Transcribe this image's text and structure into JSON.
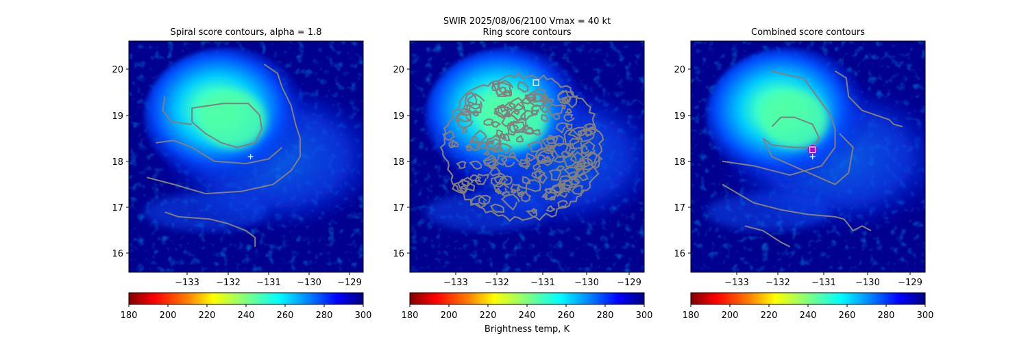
{
  "suptitle": "SWIR  2025/08/06/2100    Vmax = 40 kt",
  "colorbar_label": "Brightness temp, K",
  "colors": {
    "background_field": "#00008f",
    "contour": "#808080",
    "marker_plus": "#ffffff",
    "marker_square": "#ffffff",
    "marker_circle": "#b000c8",
    "colormap": [
      "#800000",
      "#ff0000",
      "#ff8000",
      "#ffff00",
      "#80ff80",
      "#00ffff",
      "#0080ff",
      "#0000ff",
      "#000080"
    ]
  },
  "chart_data": [
    {
      "type": "heatmap",
      "title": "Spiral score contours, alpha =  1.8",
      "xlim": [
        -134.0,
        -128.8
      ],
      "ylim": [
        15.6,
        20.6
      ],
      "xticks": [
        "−133",
        "−132",
        "−131",
        "−130",
        "−129"
      ],
      "yticks": [
        "16",
        "17",
        "18",
        "19",
        "20"
      ],
      "colorbar": {
        "min": 180,
        "max": 300,
        "ticks": [
          "180",
          "200",
          "220",
          "240",
          "260",
          "280",
          "300"
        ]
      },
      "markers": [
        {
          "kind": "plus",
          "lon": -131.3,
          "lat": 18.1
        }
      ],
      "contours": [
        [
          [
            -131.0,
            20.1
          ],
          [
            -130.7,
            19.9
          ],
          [
            -130.6,
            19.6
          ],
          [
            -130.4,
            19.2
          ],
          [
            -130.3,
            18.8
          ],
          [
            -130.2,
            18.5
          ],
          [
            -130.2,
            18.1
          ],
          [
            -130.4,
            17.8
          ],
          [
            -130.8,
            17.5
          ],
          [
            -131.5,
            17.35
          ],
          [
            -132.3,
            17.3
          ],
          [
            -133.0,
            17.5
          ],
          [
            -133.6,
            17.65
          ]
        ],
        [
          [
            -131.9,
            19.25
          ],
          [
            -131.35,
            19.25
          ],
          [
            -131.1,
            19.0
          ],
          [
            -131.05,
            18.7
          ],
          [
            -131.2,
            18.4
          ],
          [
            -131.6,
            18.3
          ],
          [
            -131.95,
            18.4
          ],
          [
            -132.3,
            18.6
          ],
          [
            -132.6,
            18.85
          ],
          [
            -132.6,
            19.15
          ],
          [
            -131.9,
            19.25
          ]
        ],
        [
          [
            -133.2,
            19.4
          ],
          [
            -133.25,
            19.1
          ],
          [
            -133.05,
            18.85
          ],
          [
            -132.6,
            18.8
          ]
        ],
        [
          [
            -133.4,
            18.4
          ],
          [
            -133.0,
            18.45
          ],
          [
            -132.6,
            18.3
          ],
          [
            -132.1,
            18.0
          ],
          [
            -131.4,
            17.95
          ],
          [
            -130.9,
            18.05
          ],
          [
            -130.6,
            18.3
          ]
        ],
        [
          [
            -133.2,
            16.9
          ],
          [
            -132.9,
            16.8
          ],
          [
            -132.2,
            16.75
          ],
          [
            -131.8,
            16.65
          ],
          [
            -131.4,
            16.5
          ],
          [
            -131.2,
            16.35
          ],
          [
            -131.2,
            16.15
          ]
        ]
      ]
    },
    {
      "type": "heatmap",
      "title": "Ring score contours",
      "xlim": [
        -134.0,
        -128.8
      ],
      "ylim": [
        15.6,
        20.6
      ],
      "xticks": [
        "−133",
        "−132",
        "−131",
        "−130",
        "−129"
      ],
      "yticks": [
        "16",
        "17",
        "18",
        "19",
        "20"
      ],
      "colorbar": {
        "min": 180,
        "max": 300,
        "ticks": [
          "180",
          "200",
          "220",
          "240",
          "260",
          "280",
          "300"
        ]
      },
      "markers": [
        {
          "kind": "square",
          "lon": -131.2,
          "lat": 19.7
        }
      ],
      "ring": {
        "center": [
          -131.5,
          18.3
        ],
        "radius": [
          1.75,
          1.55
        ]
      }
    },
    {
      "type": "heatmap",
      "title": "Combined score contours",
      "xlim": [
        -134.0,
        -128.8
      ],
      "ylim": [
        15.6,
        20.6
      ],
      "xticks": [
        "−133",
        "−132",
        "−131",
        "−130",
        "−129"
      ],
      "yticks": [
        "16",
        "17",
        "18",
        "19",
        "20"
      ],
      "colorbar": {
        "min": 180,
        "max": 300,
        "ticks": [
          "180",
          "200",
          "220",
          "240",
          "260",
          "280",
          "300"
        ]
      },
      "markers": [
        {
          "kind": "circle",
          "lon": -131.3,
          "lat": 18.25
        },
        {
          "kind": "square",
          "lon": -131.3,
          "lat": 18.25
        },
        {
          "kind": "plus",
          "lon": -131.3,
          "lat": 18.1
        }
      ],
      "contours": [
        [
          [
            -132.2,
            19.95
          ],
          [
            -131.8,
            19.85
          ],
          [
            -131.5,
            19.8
          ],
          [
            -131.2,
            19.4
          ],
          [
            -130.9,
            19.0
          ],
          [
            -130.8,
            18.7
          ],
          [
            -130.8,
            18.3
          ],
          [
            -131.1,
            17.9
          ],
          [
            -131.8,
            17.7
          ],
          [
            -132.6,
            17.9
          ],
          [
            -133.3,
            18.0
          ]
        ],
        [
          [
            -132.2,
            18.75
          ],
          [
            -132.0,
            18.95
          ],
          [
            -131.7,
            18.95
          ],
          [
            -131.3,
            18.8
          ],
          [
            -131.15,
            18.5
          ],
          [
            -131.3,
            18.3
          ],
          [
            -131.7,
            18.3
          ],
          [
            -132.2,
            18.35
          ],
          [
            -132.4,
            18.5
          ]
        ],
        [
          [
            -130.8,
            19.95
          ],
          [
            -130.55,
            19.8
          ],
          [
            -130.5,
            19.4
          ],
          [
            -130.2,
            19.1
          ],
          [
            -129.6,
            18.9
          ],
          [
            -129.5,
            18.8
          ],
          [
            -129.3,
            18.75
          ]
        ],
        [
          [
            -132.4,
            18.5
          ],
          [
            -132.2,
            18.1
          ],
          [
            -131.5,
            17.8
          ],
          [
            -130.8,
            17.5
          ],
          [
            -130.5,
            17.75
          ],
          [
            -130.4,
            18.3
          ],
          [
            -130.7,
            18.6
          ]
        ],
        [
          [
            -133.3,
            17.5
          ],
          [
            -132.6,
            17.1
          ],
          [
            -132.0,
            16.95
          ],
          [
            -131.4,
            16.85
          ],
          [
            -130.8,
            16.8
          ],
          [
            -130.6,
            16.75
          ],
          [
            -130.4,
            16.5
          ],
          [
            -130.2,
            16.6
          ],
          [
            -130.0,
            16.5
          ]
        ],
        [
          [
            -132.8,
            16.6
          ],
          [
            -132.4,
            16.5
          ],
          [
            -132.0,
            16.25
          ],
          [
            -131.8,
            16.15
          ]
        ]
      ]
    }
  ]
}
